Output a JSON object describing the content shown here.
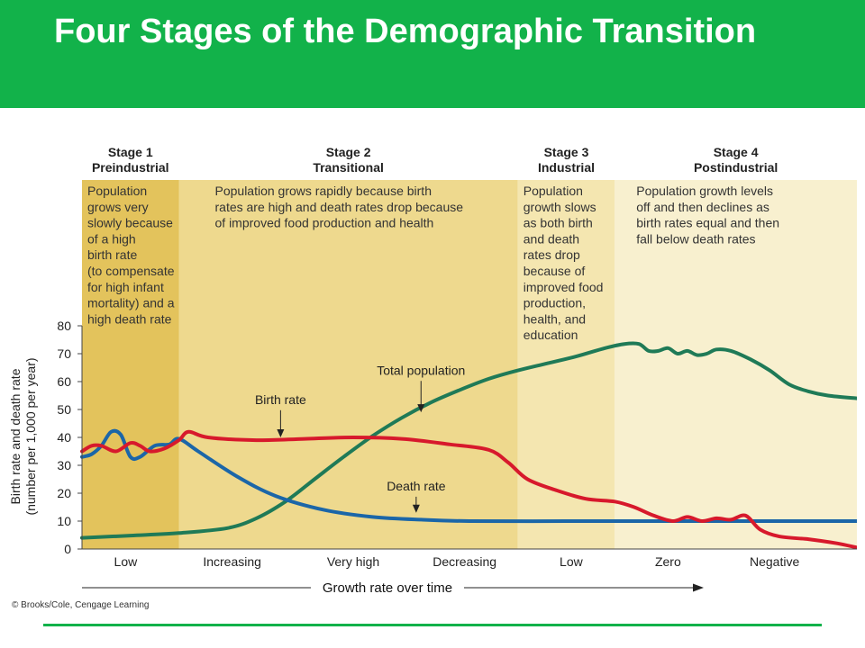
{
  "slide": {
    "title": "Four Stages of the Demographic Transition",
    "credit": "© Brooks/Cole, Cengage Learning"
  },
  "colors": {
    "title_bar": "#12b24a",
    "stage1_bg": "#e3c35c",
    "stage2_bg": "#eed98e",
    "stage3_bg": "#f4e6b0",
    "stage4_bg": "#f8f0cf",
    "birth_rate": "#d7192c",
    "death_rate": "#1b66a8",
    "total_population": "#1f7a57",
    "footer_line": "#12b24a"
  },
  "chart_data": {
    "type": "line",
    "ylabel": "Birth rate and death rate\n(number per 1,000 per year)",
    "xlabel": "Growth rate over time",
    "ylim": [
      0,
      80
    ],
    "yticks": [
      0,
      10,
      20,
      30,
      40,
      50,
      60,
      70,
      80
    ],
    "xlim": [
      0,
      8
    ],
    "x_categories": [
      "Low",
      "Increasing",
      "Very high",
      "Decreasing",
      "Low",
      "Zero",
      "Negative"
    ],
    "x_category_positions": [
      0.45,
      1.55,
      2.8,
      3.95,
      5.05,
      6.05,
      7.15
    ],
    "stages": [
      {
        "name": "Stage 1",
        "label": "Preindustrial",
        "x_start": 0,
        "x_end": 1.0,
        "description": "Population grows very slowly because of a high birth rate (to compensate for high infant mortality) and a high death rate",
        "lines": [
          "Population",
          "grows very",
          "slowly because",
          "of a high",
          "birth rate",
          "(to compensate",
          "for high infant",
          "mortality) and a",
          "high death rate"
        ]
      },
      {
        "name": "Stage 2",
        "label": "Transitional",
        "x_start": 1.0,
        "x_end": 4.5,
        "description": "Population grows rapidly because birth rates are high and death rates drop because of improved food production and health",
        "lines": [
          "Population grows rapidly because birth",
          "rates are high and death rates drop because",
          "of improved food production and health"
        ]
      },
      {
        "name": "Stage 3",
        "label": "Industrial",
        "x_start": 4.5,
        "x_end": 5.5,
        "description": "Population growth slows as both birth and death rates drop because of improved food production, health, and education",
        "lines": [
          "Population",
          "growth slows",
          "as both birth",
          "and death",
          "rates drop",
          "because of",
          "improved food",
          "production,",
          "health, and",
          "education"
        ]
      },
      {
        "name": "Stage 4",
        "label": "Postindustrial",
        "x_start": 5.5,
        "x_end": 8.0,
        "description": "Population growth levels off and then declines as birth rates equal and then fall below death rates",
        "lines": [
          "Population growth levels",
          "off and then declines as",
          "birth rates equal and then",
          "fall below death rates"
        ]
      }
    ],
    "series": [
      {
        "name": "Birth rate",
        "color": "#d7192c",
        "x": [
          0,
          0.1,
          0.2,
          0.35,
          0.5,
          0.6,
          0.7,
          0.85,
          1.0,
          1.1,
          1.3,
          1.8,
          2.3,
          2.8,
          3.3,
          3.8,
          4.2,
          4.4,
          4.6,
          4.9,
          5.2,
          5.5,
          5.7,
          5.9,
          6.1,
          6.25,
          6.4,
          6.55,
          6.7,
          6.85,
          7.0,
          7.2,
          7.5,
          7.8,
          8.0
        ],
        "y": [
          35,
          37,
          37,
          35,
          38,
          37,
          35,
          36,
          39,
          42,
          40,
          39,
          39.5,
          40,
          39.5,
          37.5,
          35.5,
          31,
          25,
          21,
          18,
          17,
          15,
          12,
          10,
          11.5,
          10,
          11,
          10.5,
          12,
          7,
          4.5,
          3.5,
          2,
          0.5
        ]
      },
      {
        "name": "Death rate",
        "color": "#1b66a8",
        "x": [
          0,
          0.1,
          0.2,
          0.3,
          0.4,
          0.5,
          0.6,
          0.75,
          0.9,
          1.0,
          1.2,
          1.6,
          2.0,
          2.5,
          3.0,
          3.5,
          4.0,
          5.0,
          6.0,
          7.0,
          8.0
        ],
        "y": [
          33,
          34,
          37,
          42,
          41,
          33,
          33,
          37,
          37.5,
          39.5,
          35,
          26,
          19,
          14,
          11.5,
          10.5,
          10,
          10,
          10,
          10,
          10
        ]
      },
      {
        "name": "Total population",
        "color": "#1f7a57",
        "x": [
          0,
          0.5,
          1.0,
          1.5,
          1.8,
          2.1,
          2.4,
          2.7,
          3.0,
          3.3,
          3.6,
          3.9,
          4.2,
          4.5,
          4.8,
          5.1,
          5.4,
          5.6,
          5.75,
          5.85,
          5.95,
          6.05,
          6.15,
          6.25,
          6.35,
          6.45,
          6.55,
          6.7,
          6.9,
          7.1,
          7.3,
          7.5,
          7.7,
          8.0
        ],
        "y": [
          4,
          4.8,
          5.7,
          7.5,
          11,
          17,
          25,
          33,
          40.5,
          47,
          52.5,
          57,
          61,
          64,
          66.5,
          69,
          72,
          73.5,
          73.5,
          71,
          71,
          72,
          70,
          71,
          69.5,
          70,
          71.5,
          71,
          68,
          64,
          59,
          56.5,
          55,
          54
        ]
      }
    ],
    "annotations": [
      {
        "text": "Birth rate",
        "x": 2.05,
        "y": 52
      },
      {
        "text": "Total population",
        "x": 3.5,
        "y": 62.5
      },
      {
        "text": "Death rate",
        "x": 3.45,
        "y": 21
      }
    ]
  }
}
